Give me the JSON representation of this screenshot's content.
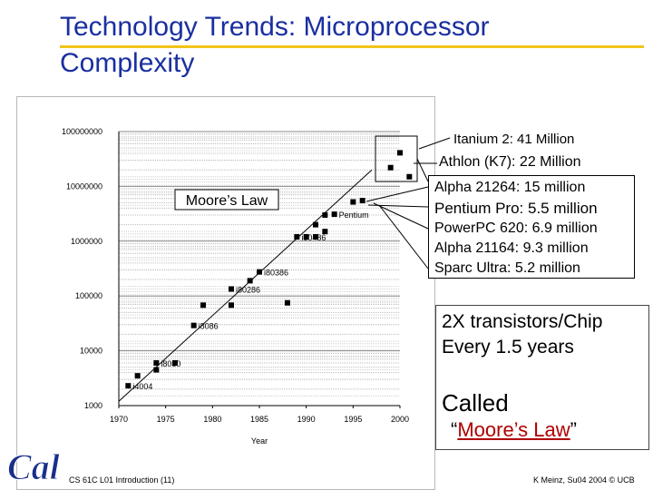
{
  "title": "Technology Trends: Microprocessor\nComplexity",
  "chart_data": {
    "type": "scatter",
    "xlabel": "Year",
    "ylabel": "",
    "x_ticks": [
      "1970",
      "1975",
      "1980",
      "1985",
      "1990",
      "1995",
      "2000"
    ],
    "xlim": [
      1970,
      2000
    ],
    "y_ticks": [
      "1000",
      "10000",
      "100000",
      "1000000",
      "10000000",
      "100000000"
    ],
    "ylim": [
      1000,
      100000000
    ],
    "y_scale": "log",
    "grid": true,
    "marker_color": "#000000",
    "annotation": "Moore’s Law",
    "trend_line": [
      [
        1970,
        1200
      ],
      [
        1997,
        20000000
      ]
    ],
    "points": [
      {
        "x": 1971,
        "y": 2300,
        "label": "i4004"
      },
      {
        "x": 1972,
        "y": 3500,
        "label": ""
      },
      {
        "x": 1974,
        "y": 4500,
        "label": ""
      },
      {
        "x": 1974,
        "y": 6000,
        "label": "i8080"
      },
      {
        "x": 1976,
        "y": 6000,
        "label": ""
      },
      {
        "x": 1978,
        "y": 29000,
        "label": "i8086"
      },
      {
        "x": 1979,
        "y": 68000,
        "label": ""
      },
      {
        "x": 1982,
        "y": 68000,
        "label": ""
      },
      {
        "x": 1982,
        "y": 134000,
        "label": "i80286"
      },
      {
        "x": 1984,
        "y": 190000,
        "label": ""
      },
      {
        "x": 1985,
        "y": 275000,
        "label": "i80386"
      },
      {
        "x": 1988,
        "y": 75000,
        "label": ""
      },
      {
        "x": 1989,
        "y": 1200000,
        "label": "i80486"
      },
      {
        "x": 1990,
        "y": 1200000,
        "label": ""
      },
      {
        "x": 1991,
        "y": 1200000,
        "label": ""
      },
      {
        "x": 1991,
        "y": 2000000,
        "label": ""
      },
      {
        "x": 1992,
        "y": 1500000,
        "label": ""
      },
      {
        "x": 1992,
        "y": 3000000,
        "label": ""
      },
      {
        "x": 1993,
        "y": 3100000,
        "label": "Pentium"
      },
      {
        "x": 1995,
        "y": 5200000,
        "label": ""
      },
      {
        "x": 1996,
        "y": 5500000,
        "label": ""
      },
      {
        "x": 1999,
        "y": 22000000,
        "label": ""
      },
      {
        "x": 2000,
        "y": 41000000,
        "label": ""
      },
      {
        "x": 2001,
        "y": 15000000,
        "label": ""
      }
    ]
  },
  "callouts": {
    "itanium": "Itanium 2: 41 Million",
    "athlon": "Athlon (K7): 22 Million",
    "list": [
      "Alpha 21264: 15 million",
      "Pentium Pro: 5.5 million",
      "PowerPC 620: 6.9 million",
      "Alpha 21164: 9.3 million",
      "Sparc Ultra: 5.2 million"
    ]
  },
  "rate_box": {
    "text": "2X transistors/Chip\nEvery 1.5 years",
    "called": "Called",
    "open_quote": "“",
    "law_name": "Moore’s Law",
    "close_quote": "”"
  },
  "logo_text": "Cal",
  "footer": {
    "left": "CS 61C L01 Introduction (11)",
    "right": "K Meinz, Su04 2004 © UCB"
  },
  "colors": {
    "title": "#1a2fa0",
    "rule": "#f0c419",
    "law_name": "#b00000",
    "logo": "#1a2f8a"
  }
}
